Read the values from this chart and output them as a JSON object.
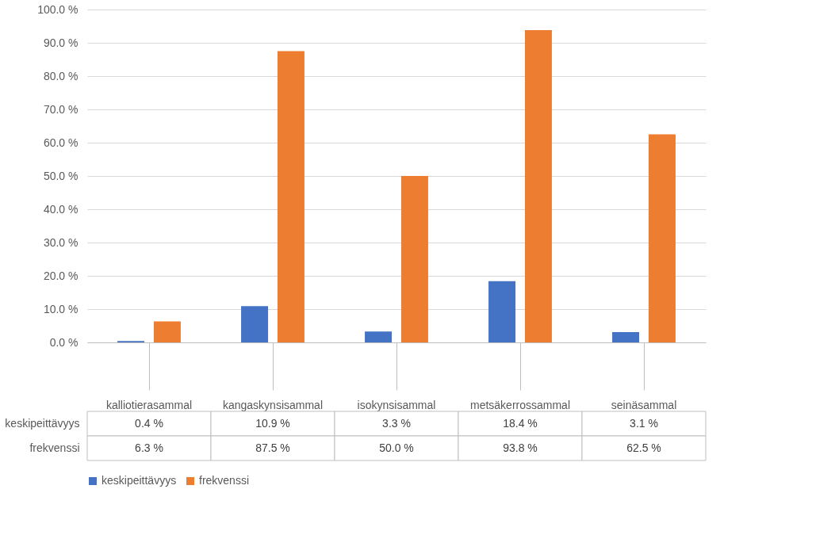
{
  "chart_data": {
    "type": "bar",
    "categories": [
      "kalliotierasammal",
      "kangaskynsisammal",
      "isokynsisammal",
      "metsäkerrossammal",
      "seinäsammal"
    ],
    "series": [
      {
        "name": "keskipeittävyys",
        "color": "#4472c4",
        "values": [
          0.4,
          10.9,
          3.3,
          18.4,
          3.1
        ],
        "value_labels": [
          "0.4 %",
          "10.9 %",
          "3.3 %",
          "18.4 %",
          "3.1 %"
        ]
      },
      {
        "name": "frekvenssi",
        "color": "#ed7d31",
        "values": [
          6.3,
          87.5,
          50.0,
          93.8,
          62.5
        ],
        "value_labels": [
          "6.3 %",
          "87.5 %",
          "50.0 %",
          "93.8 %",
          "62.5 %"
        ]
      }
    ],
    "ylim": [
      0,
      100
    ],
    "yticks": [
      {
        "value": 0,
        "label": "0.0 %"
      },
      {
        "value": 10,
        "label": "10.0 %"
      },
      {
        "value": 20,
        "label": "20.0 %"
      },
      {
        "value": 30,
        "label": "30.0 %"
      },
      {
        "value": 40,
        "label": "40.0 %"
      },
      {
        "value": 50,
        "label": "50.0 %"
      },
      {
        "value": 60,
        "label": "60.0 %"
      },
      {
        "value": 70,
        "label": "70.0 %"
      },
      {
        "value": 80,
        "label": "80.0 %"
      },
      {
        "value": 90,
        "label": "90.0 %"
      },
      {
        "value": 100,
        "label": "100.0 %"
      }
    ],
    "grid": "y",
    "legend": "bottom"
  }
}
